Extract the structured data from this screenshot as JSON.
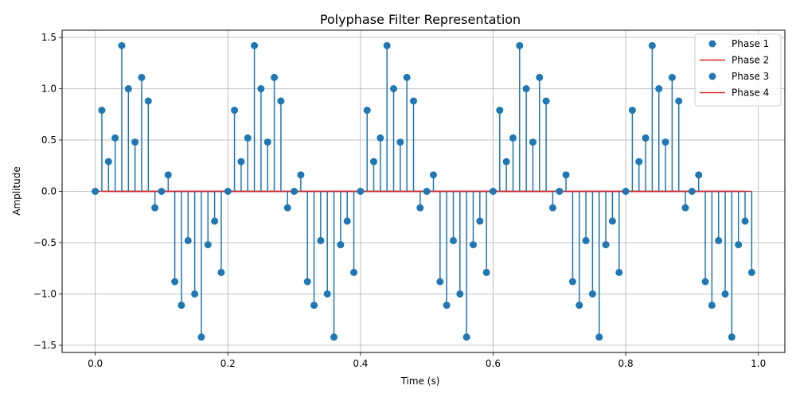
{
  "chart_data": {
    "type": "stem",
    "title": "Polyphase Filter Representation",
    "xlabel": "Time (s)",
    "ylabel": "Amplitude",
    "xlim": [
      -0.05,
      1.04
    ],
    "ylim": [
      -1.57,
      1.57
    ],
    "xticks": [
      0.0,
      0.2,
      0.4,
      0.6,
      0.8,
      1.0
    ],
    "xtick_labels": [
      "0.0",
      "0.2",
      "0.4",
      "0.6",
      "0.8",
      "1.0"
    ],
    "yticks": [
      -1.5,
      -1.0,
      -0.5,
      0.0,
      0.5,
      1.0,
      1.5
    ],
    "ytick_labels": [
      "−1.5",
      "−1.0",
      "−0.5",
      "0.0",
      "0.5",
      "1.0",
      "1.5"
    ],
    "grid": true,
    "legend_position": "upper-right",
    "colors": {
      "marker": "#1f77b4",
      "stem": "#1f77b4",
      "baseline": "#d62728",
      "grid": "#b0b0b0"
    },
    "series": [
      {
        "name": "Phase 1",
        "start": 0,
        "step": 4
      },
      {
        "name": "Phase 2",
        "start": 1,
        "step": 4
      },
      {
        "name": "Phase 3",
        "start": 2,
        "step": 4
      },
      {
        "name": "Phase 4",
        "start": 3,
        "step": 4
      }
    ],
    "x": [
      0.0,
      0.01,
      0.02,
      0.03,
      0.04,
      0.05,
      0.06,
      0.07,
      0.08,
      0.09,
      0.1,
      0.11,
      0.12,
      0.13,
      0.14,
      0.15,
      0.16,
      0.17,
      0.18,
      0.19,
      0.2,
      0.21,
      0.22,
      0.23,
      0.24,
      0.25,
      0.26,
      0.27,
      0.28,
      0.29,
      0.3,
      0.31,
      0.32,
      0.33,
      0.34,
      0.35,
      0.36,
      0.37,
      0.38,
      0.39,
      0.4,
      0.41,
      0.42,
      0.43,
      0.44,
      0.45,
      0.46,
      0.47,
      0.48,
      0.49,
      0.5,
      0.51,
      0.52,
      0.53,
      0.54,
      0.55,
      0.56,
      0.57,
      0.58,
      0.59,
      0.6,
      0.61,
      0.62,
      0.63,
      0.64,
      0.65,
      0.66,
      0.67,
      0.68,
      0.69,
      0.7,
      0.71,
      0.72,
      0.73,
      0.74,
      0.75,
      0.76,
      0.77,
      0.78,
      0.79,
      0.8,
      0.81,
      0.82,
      0.83,
      0.84,
      0.85,
      0.86,
      0.87,
      0.88,
      0.89,
      0.9,
      0.91,
      0.92,
      0.93,
      0.94,
      0.95,
      0.96,
      0.97,
      0.98,
      0.99
    ],
    "y": [
      0.0,
      0.79,
      0.29,
      0.52,
      1.42,
      1.0,
      0.48,
      1.11,
      0.88,
      -0.16,
      0.0,
      0.16,
      -0.88,
      -1.11,
      -0.48,
      -1.0,
      -1.42,
      -0.52,
      -0.29,
      -0.79,
      0.0,
      0.79,
      0.29,
      0.52,
      1.42,
      1.0,
      0.48,
      1.11,
      0.88,
      -0.16,
      0.0,
      0.16,
      -0.88,
      -1.11,
      -0.48,
      -1.0,
      -1.42,
      -0.52,
      -0.29,
      -0.79,
      0.0,
      0.79,
      0.29,
      0.52,
      1.42,
      1.0,
      0.48,
      1.11,
      0.88,
      -0.16,
      0.0,
      0.16,
      -0.88,
      -1.11,
      -0.48,
      -1.0,
      -1.42,
      -0.52,
      -0.29,
      -0.79,
      0.0,
      0.79,
      0.29,
      0.52,
      1.42,
      1.0,
      0.48,
      1.11,
      0.88,
      -0.16,
      0.0,
      0.16,
      -0.88,
      -1.11,
      -0.48,
      -1.0,
      -1.42,
      -0.52,
      -0.29,
      -0.79,
      0.0,
      0.79,
      0.29,
      0.52,
      1.42,
      1.0,
      0.48,
      1.11,
      0.88,
      -0.16,
      0.0,
      0.16,
      -0.88,
      -1.11,
      -0.48,
      -1.0,
      -1.42,
      -0.52,
      -0.29,
      -0.79
    ]
  }
}
